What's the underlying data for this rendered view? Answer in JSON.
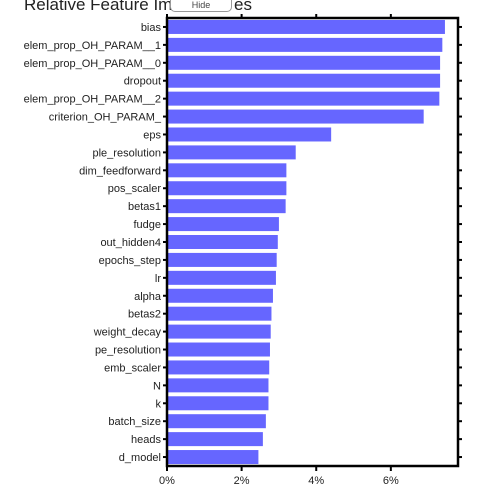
{
  "chart_data": {
    "type": "bar",
    "orientation": "horizontal",
    "title": "Relative Feature Importances",
    "title_visible_left": "Relative Feature Im",
    "title_visible_right": "es",
    "overlay_label": "Hide",
    "xlabel": "",
    "ylabel": "",
    "xlim": [
      0,
      7.8
    ],
    "xticks": [
      0,
      2,
      4,
      6
    ],
    "xtick_labels": [
      "0%",
      "2%",
      "4%",
      "6%"
    ],
    "bar_color": "#6666ff",
    "categories": [
      "bias",
      "elem_prop_OH_PARAM__1",
      "elem_prop_OH_PARAM__0",
      "dropout",
      "elem_prop_OH_PARAM__2",
      "criterion_OH_PARAM_",
      "eps",
      "ple_resolution",
      "dim_feedforward",
      "pos_scaler",
      "betas1",
      "fudge",
      "out_hidden4",
      "epochs_step",
      "lr",
      "alpha",
      "betas2",
      "weight_decay",
      "pe_resolution",
      "emb_scaler",
      "N",
      "k",
      "batch_size",
      "heads",
      "d_model"
    ],
    "values": [
      7.45,
      7.38,
      7.32,
      7.32,
      7.3,
      6.88,
      4.4,
      3.45,
      3.2,
      3.2,
      3.18,
      3.0,
      2.97,
      2.94,
      2.92,
      2.84,
      2.8,
      2.78,
      2.76,
      2.74,
      2.72,
      2.72,
      2.65,
      2.57,
      2.45
    ]
  }
}
